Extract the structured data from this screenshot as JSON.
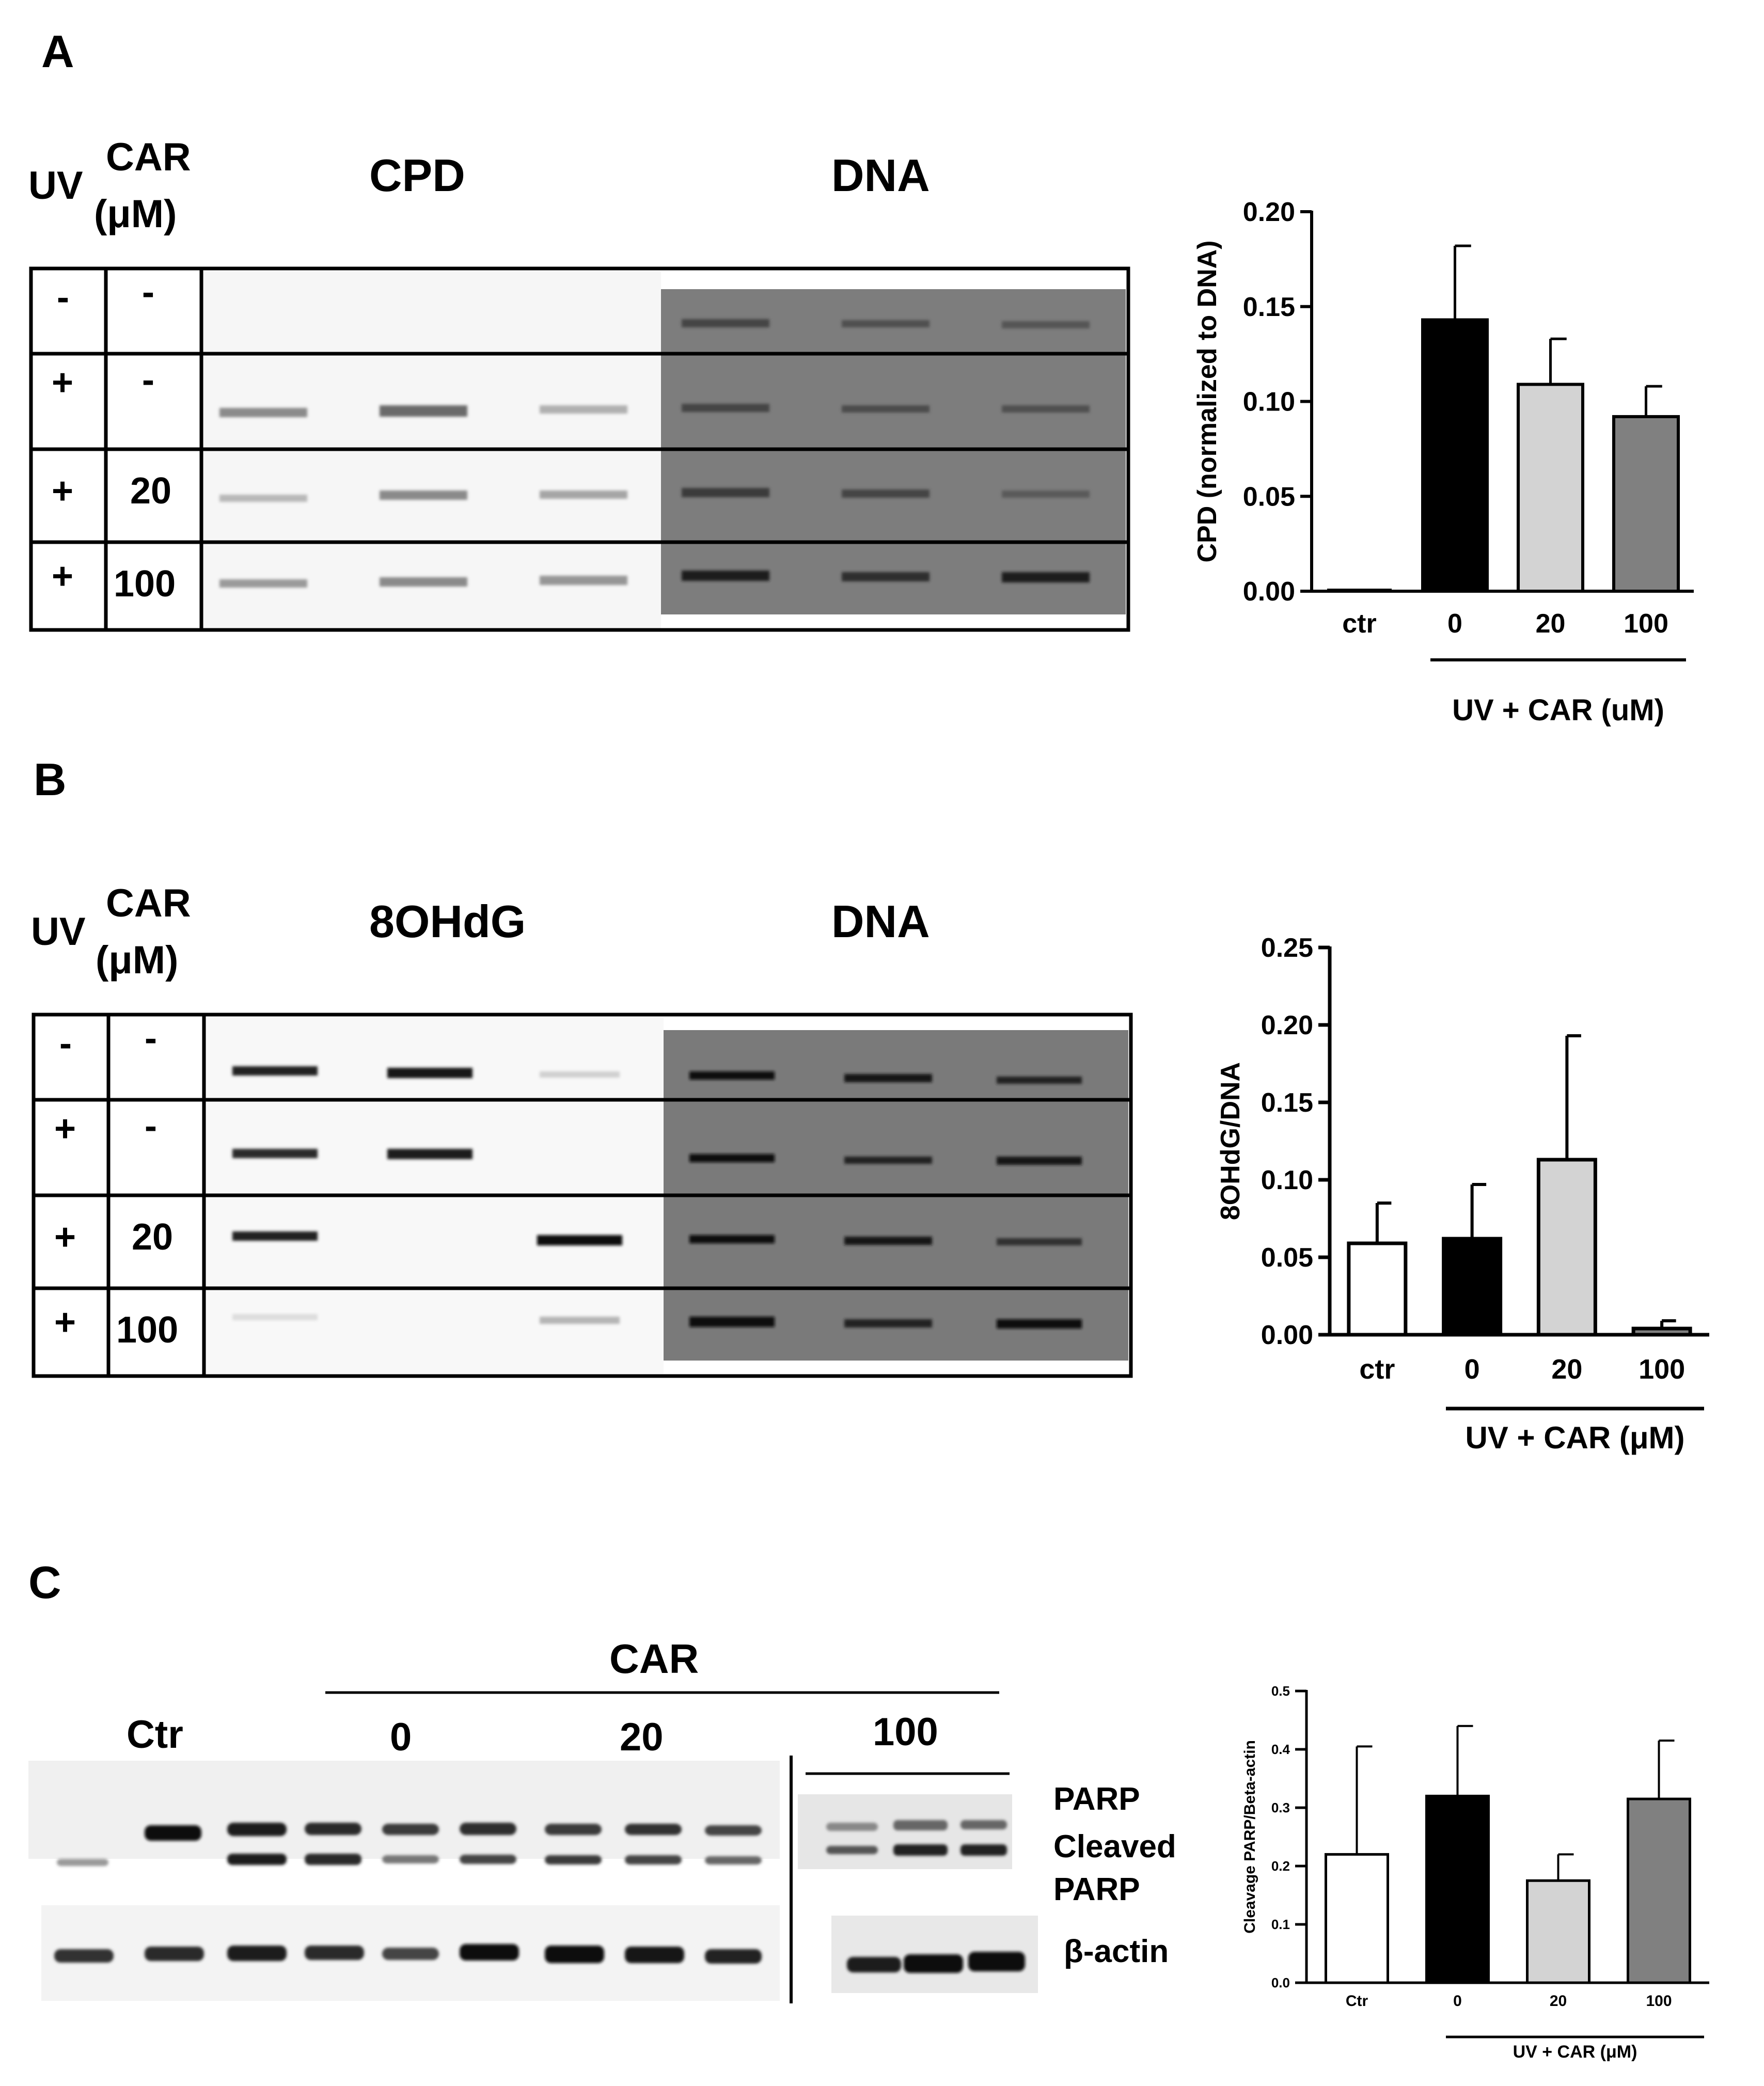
{
  "panel_a": {
    "label": "A",
    "uv_header": "UV",
    "car_header_line1": "CAR",
    "car_header_line2": "(μM)",
    "blot_left_label": "CPD",
    "blot_right_label": "DNA",
    "rows": [
      {
        "uv": "-",
        "car": "-"
      },
      {
        "uv": "+",
        "car": "-"
      },
      {
        "uv": "+",
        "car": "20"
      },
      {
        "uv": "+",
        "car": "100"
      }
    ]
  },
  "panel_b": {
    "label": "B",
    "uv_header": "UV",
    "car_header_line1": "CAR",
    "car_header_line2": "(μM)",
    "blot_left_label": "8OHdG",
    "blot_right_label": "DNA",
    "rows": [
      {
        "uv": "-",
        "car": "-"
      },
      {
        "uv": "+",
        "car": "-"
      },
      {
        "uv": "+",
        "car": "20"
      },
      {
        "uv": "+",
        "car": "100"
      }
    ]
  },
  "panel_c": {
    "label": "C",
    "car_label": "CAR",
    "group_labels": [
      "Ctr",
      "0",
      "20",
      "100"
    ],
    "band_labels": [
      "PARP",
      "Cleaved",
      "PARP",
      "β-actin"
    ]
  },
  "chart_data": [
    {
      "type": "bar",
      "panel": "A",
      "categories": [
        "ctr",
        "0",
        "20",
        "100"
      ],
      "values": [
        0.0,
        0.143,
        0.109,
        0.092
      ],
      "errors": [
        0.0,
        0.039,
        0.024,
        0.016
      ],
      "bar_colors": [
        "#ffffff",
        "#000000",
        "#d3d3d3",
        "#808080"
      ],
      "ylabel": "CPD (normalized to DNA)",
      "ylim": [
        0,
        0.2
      ],
      "yticks": [
        "0.00",
        "0.05",
        "0.10",
        "0.15",
        "0.20"
      ],
      "group_label": "UV + CAR (uM)"
    },
    {
      "type": "bar",
      "panel": "B",
      "categories": [
        "ctr",
        "0",
        "20",
        "100"
      ],
      "values": [
        0.059,
        0.062,
        0.113,
        0.004
      ],
      "errors": [
        0.026,
        0.035,
        0.08,
        0.005
      ],
      "bar_colors": [
        "#ffffff",
        "#000000",
        "#d3d3d3",
        "#808080"
      ],
      "ylabel": "8OHdG/DNA",
      "ylim": [
        0,
        0.25
      ],
      "yticks": [
        "0.00",
        "0.05",
        "0.10",
        "0.15",
        "0.20",
        "0.25"
      ],
      "group_label": "UV + CAR (μM)"
    },
    {
      "type": "bar",
      "panel": "C",
      "categories": [
        "Ctr",
        "0",
        "20",
        "100"
      ],
      "values": [
        0.22,
        0.32,
        0.175,
        0.315
      ],
      "errors": [
        0.185,
        0.12,
        0.045,
        0.1
      ],
      "bar_colors": [
        "#ffffff",
        "#000000",
        "#d3d3d3",
        "#808080"
      ],
      "ylabel": "Cleavage PARP/Beta-actin",
      "ylim": [
        0,
        0.5
      ],
      "yticks": [
        "0.0",
        "0.1",
        "0.2",
        "0.3",
        "0.4",
        "0.5"
      ],
      "group_label": "UV + CAR (μM)"
    }
  ]
}
